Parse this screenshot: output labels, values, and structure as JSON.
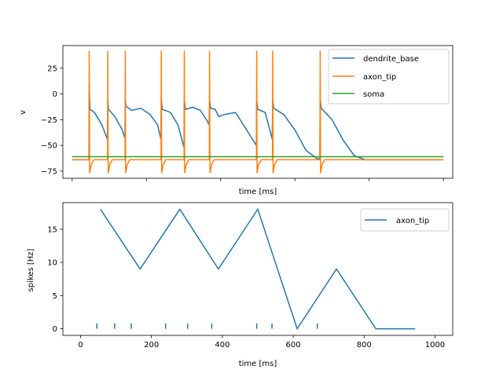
{
  "chart_data": [
    {
      "type": "line",
      "xlabel": "time [ms]",
      "ylabel": "v",
      "xlim": [
        -25,
        1025
      ],
      "ylim": [
        -82,
        47
      ],
      "x_ticks": [
        0,
        200,
        400,
        600,
        800,
        1000
      ],
      "x_tick_labels_visible": false,
      "y_ticks": [
        -75,
        -50,
        -25,
        0,
        25
      ],
      "y_tick_labels": [
        "−75",
        "−50",
        "−25",
        "0",
        "25"
      ],
      "legend_position": "top-right",
      "spike_times": [
        46,
        96,
        143,
        240,
        302,
        370,
        497,
        540,
        668
      ],
      "series": [
        {
          "name": "dendrite_base",
          "color": "#1f77b4",
          "description_points": [
            [
              0,
              -64
            ],
            [
              45,
              -64
            ],
            [
              46,
              10
            ],
            [
              48,
              -15
            ],
            [
              60,
              -18
            ],
            [
              80,
              -30
            ],
            [
              95,
              -44
            ],
            [
              96,
              -5
            ],
            [
              98,
              -15
            ],
            [
              115,
              -22
            ],
            [
              135,
              -35
            ],
            [
              142,
              -43
            ],
            [
              143,
              -5
            ],
            [
              145,
              -12
            ],
            [
              160,
              -16
            ],
            [
              185,
              -14
            ],
            [
              210,
              -20
            ],
            [
              230,
              -30
            ],
            [
              239,
              -44
            ],
            [
              240,
              -5
            ],
            [
              243,
              -15
            ],
            [
              265,
              -18
            ],
            [
              285,
              -30
            ],
            [
              301,
              -52
            ],
            [
              302,
              -5
            ],
            [
              305,
              -15
            ],
            [
              325,
              -13
            ],
            [
              345,
              -16
            ],
            [
              365,
              -27
            ],
            [
              369,
              -30
            ],
            [
              370,
              -5
            ],
            [
              373,
              -14
            ],
            [
              385,
              -15
            ],
            [
              395,
              -22
            ],
            [
              410,
              -20
            ],
            [
              440,
              -18
            ],
            [
              470,
              -35
            ],
            [
              496,
              -50
            ],
            [
              497,
              -5
            ],
            [
              500,
              -15
            ],
            [
              520,
              -18
            ],
            [
              539,
              -44
            ],
            [
              540,
              -5
            ],
            [
              543,
              -14
            ],
            [
              570,
              -20
            ],
            [
              600,
              -35
            ],
            [
              630,
              -55
            ],
            [
              660,
              -63
            ],
            [
              667,
              -63
            ],
            [
              668,
              -5
            ],
            [
              671,
              -14
            ],
            [
              700,
              -25
            ],
            [
              730,
              -45
            ],
            [
              760,
              -60
            ],
            [
              790,
              -64
            ],
            [
              1000,
              -64
            ]
          ]
        },
        {
          "name": "axon_tip",
          "color": "#ff7f0e",
          "resting": -64,
          "peak": 42,
          "trough": -77
        },
        {
          "name": "soma",
          "color": "#2ca02c",
          "values": [
            [
              0,
              -61
            ],
            [
              1000,
              -61
            ]
          ]
        }
      ]
    },
    {
      "type": "line",
      "xlabel": "time [ms]",
      "ylabel": "spikes [Hz]",
      "xlim": [
        -50,
        1050
      ],
      "ylim": [
        -1,
        19
      ],
      "x_ticks": [
        0,
        200,
        400,
        600,
        800,
        1000
      ],
      "x_tick_labels": [
        "0",
        "200",
        "400",
        "600",
        "800",
        "1000"
      ],
      "y_ticks": [
        0,
        5,
        10,
        15
      ],
      "y_tick_labels": [
        "0",
        "5",
        "10",
        "15"
      ],
      "legend_position": "top-right",
      "series": [
        {
          "name": "axon_tip",
          "color": "#1f77b4",
          "x": [
            56,
            168,
            280,
            389,
            500,
            611,
            722,
            833,
            944
          ],
          "y": [
            18,
            9,
            18,
            9,
            18,
            0,
            9,
            0,
            0
          ]
        }
      ],
      "raster": {
        "color": "#1f77b4",
        "x": [
          46,
          96,
          143,
          240,
          302,
          370,
          497,
          540,
          668
        ],
        "height": 0.8
      }
    }
  ]
}
